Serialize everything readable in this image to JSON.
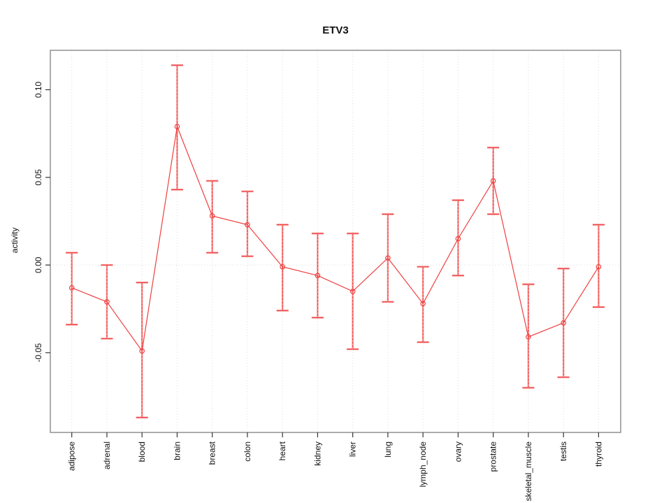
{
  "window": {
    "background": "#ffffff"
  },
  "chart_data": {
    "type": "line",
    "title": "ETV3",
    "xlabel": "",
    "ylabel": "activity",
    "categories": [
      "adipose",
      "adrenal",
      "blood",
      "brain",
      "breast",
      "colon",
      "heart",
      "kidney",
      "liver",
      "lung",
      "lymph_node",
      "ovary",
      "prostate",
      "skeletal_muscle",
      "testis",
      "thyroid"
    ],
    "series": [
      {
        "name": "ETV3 activity",
        "values": [
          -0.013,
          -0.021,
          -0.049,
          0.079,
          0.028,
          0.023,
          -0.001,
          -0.006,
          -0.015,
          0.004,
          -0.022,
          0.015,
          0.048,
          -0.041,
          -0.033,
          -0.001
        ],
        "ci_lower": [
          -0.034,
          -0.042,
          -0.087,
          0.043,
          0.007,
          0.005,
          -0.026,
          -0.03,
          -0.048,
          -0.021,
          -0.044,
          -0.006,
          0.029,
          -0.07,
          -0.064,
          -0.024
        ],
        "ci_upper": [
          0.007,
          0.0,
          -0.01,
          0.114,
          0.048,
          0.042,
          0.023,
          0.018,
          0.018,
          0.029,
          -0.001,
          0.037,
          0.067,
          -0.011,
          -0.002,
          0.023
        ]
      }
    ],
    "ylim": [
      -0.0955,
      0.1225
    ],
    "yticks": [
      -0.05,
      0,
      0.05,
      0.1
    ],
    "ytick_labels": [
      "-0.05",
      "0.00",
      "0.05",
      "0.10"
    ],
    "grid": {
      "vertical_dotted": true,
      "horizontal_zero_line_dotted": true
    },
    "legend_position": "none",
    "marker": "open-circle",
    "error_bars": true,
    "colors": {
      "series": "#ef3f3f",
      "error_bar_light": "#f69090",
      "grid": "#dcdcdc",
      "frame": "#7f7f7f",
      "tick": "#333333",
      "text": "#111111",
      "background": "#ffffff"
    }
  }
}
